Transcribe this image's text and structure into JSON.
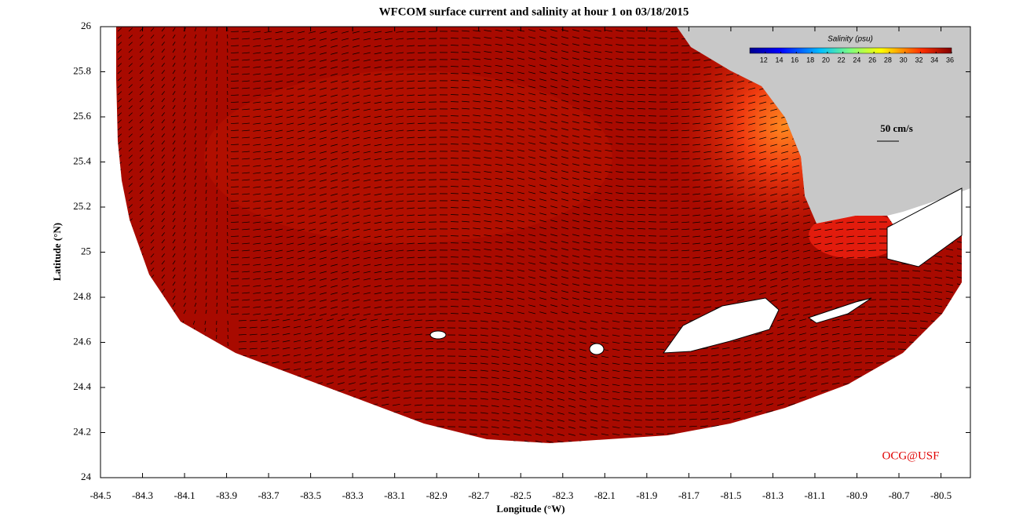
{
  "map": {
    "title": "WFCOM surface current and salinity at hour 1 on 03/18/2015",
    "x_label": "Longitude (°W)",
    "y_label": "Latitude (°N)",
    "xlim": [
      -84.5,
      -80.36
    ],
    "ylim": [
      24,
      26
    ],
    "xticks": [
      -84.5,
      -84.3,
      -84.1,
      -83.9,
      -83.7,
      -83.5,
      -83.3,
      -83.1,
      -82.9,
      -82.7,
      -82.5,
      -82.3,
      -82.1,
      -81.9,
      -81.7,
      -81.5,
      -81.3,
      -81.1,
      -80.9,
      -80.7,
      -80.5
    ],
    "yticks": [
      24,
      24.2,
      24.4,
      24.6,
      24.8,
      25,
      25.2,
      25.4,
      25.6,
      25.8,
      26
    ],
    "colorbar": {
      "label": "Salinity (psu)",
      "range": [
        10,
        36
      ],
      "ticks": [
        12,
        14,
        16,
        18,
        20,
        22,
        24,
        26,
        28,
        30,
        32,
        34,
        36
      ]
    },
    "vector_scale_label": "50 cm/s",
    "credit": "OCG@USF"
  }
}
